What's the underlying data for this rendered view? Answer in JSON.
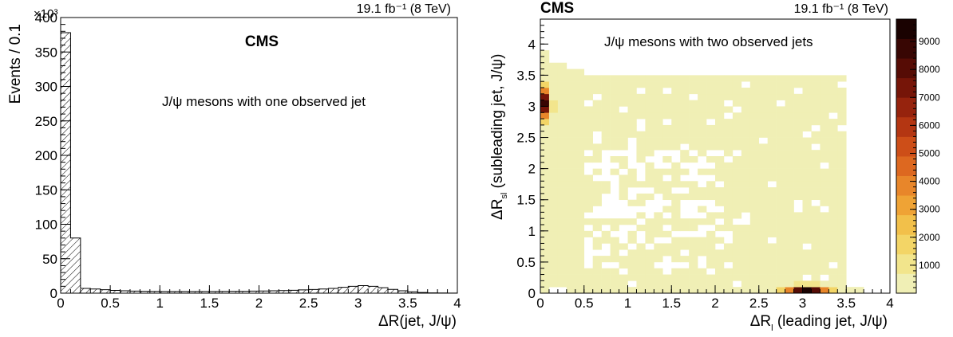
{
  "chart_data": [
    {
      "type": "bar",
      "subtype": "histogram",
      "cms_label": "CMS",
      "lumi_label": "19.1 fb⁻¹ (8 TeV)",
      "annotation": "J/ψ mesons with one observed jet",
      "xlabel": "ΔR(jet, J/ψ)",
      "ylabel": "Events / 0.1",
      "y_exponent_label": "×10³",
      "xlim": [
        0,
        4
      ],
      "ylim": [
        0,
        400
      ],
      "y_unit_scale": 1000,
      "fill_style": "hatched",
      "x_ticks": [
        "0",
        "0.5",
        "1",
        "1.5",
        "2",
        "2.5",
        "3",
        "3.5",
        "4"
      ],
      "y_ticks": [
        "0",
        "50",
        "100",
        "150",
        "200",
        "250",
        "300",
        "350",
        "400"
      ],
      "bin_width": 0.1,
      "bin_low_edges": [
        0.0,
        0.1,
        0.2,
        0.3,
        0.4,
        0.5,
        0.6,
        0.7,
        0.8,
        0.9,
        1.0,
        1.1,
        1.2,
        1.3,
        1.4,
        1.5,
        1.6,
        1.7,
        1.8,
        1.9,
        2.0,
        2.1,
        2.2,
        2.3,
        2.4,
        2.5,
        2.6,
        2.7,
        2.8,
        2.9,
        3.0,
        3.1,
        3.2,
        3.3,
        3.4,
        3.5,
        3.6,
        3.7,
        3.8,
        3.9
      ],
      "values": [
        378,
        80,
        7,
        6,
        5,
        4,
        3.5,
        3,
        2.8,
        2.6,
        2.5,
        2.4,
        2.4,
        2.4,
        2.4,
        2.5,
        2.6,
        2.7,
        2.8,
        3,
        3.2,
        3.5,
        3.8,
        4.2,
        4.7,
        5.3,
        6,
        7,
        8.5,
        10,
        11,
        10,
        8,
        5.5,
        3.5,
        2,
        1,
        0.5,
        0.3,
        0.2
      ]
    },
    {
      "type": "heatmap",
      "cms_label": "CMS",
      "lumi_label": "19.1 fb⁻¹ (8 TeV)",
      "annotation": "J/ψ mesons with two observed jets",
      "xlabel": "ΔR_l (leading jet, J/ψ)",
      "ylabel": "ΔR_sl (subleading jet, J/ψ)",
      "xlim": [
        0,
        4
      ],
      "ylim": [
        0,
        4.4
      ],
      "x_ticks": [
        "0",
        "0.5",
        "1",
        "1.5",
        "2",
        "2.5",
        "3",
        "3.5",
        "4"
      ],
      "y_ticks": [
        "0",
        "0.5",
        "1",
        "1.5",
        "2",
        "2.5",
        "3",
        "3.5",
        "4"
      ],
      "colorbar": {
        "range": [
          0,
          9800
        ],
        "ticks": [
          "1000",
          "2000",
          "3000",
          "4000",
          "5000",
          "6000",
          "7000",
          "8000",
          "9000"
        ],
        "colors": [
          "#f0efb5",
          "#f2e58c",
          "#f3d566",
          "#f2c04a",
          "#efa335",
          "#e8862a",
          "#dd6820",
          "#cd4e18",
          "#b43612",
          "#96230d",
          "#761508",
          "#560c05",
          "#380603",
          "#1a0201"
        ]
      },
      "hotspots": [
        {
          "x": 0.05,
          "y": 3.05,
          "value": 9000
        },
        {
          "x": 3.05,
          "y": 0.05,
          "value": 9500
        }
      ]
    }
  ]
}
